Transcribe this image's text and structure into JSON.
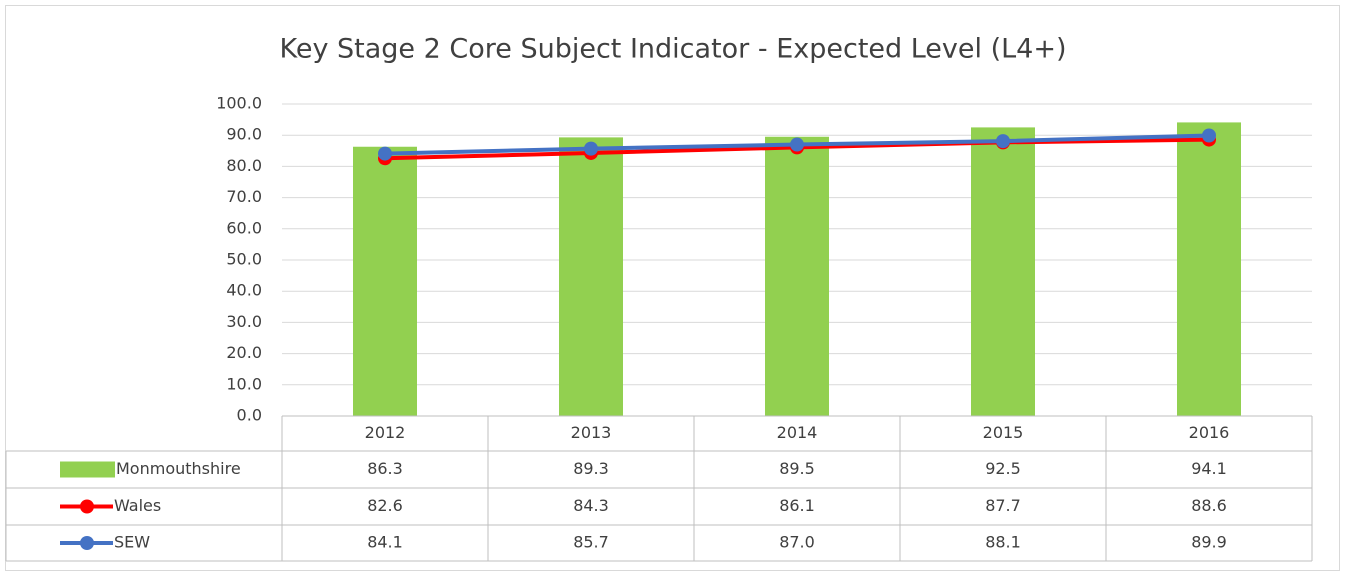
{
  "chart_data": {
    "type": "bar-line",
    "title": "Key Stage 2 Core Subject Indicator - Expected Level (L4+)",
    "categories": [
      "2012",
      "2013",
      "2014",
      "2015",
      "2016"
    ],
    "series": [
      {
        "name": "Monmouthshire",
        "type": "bar",
        "color": "#92d050",
        "values": [
          86.3,
          89.3,
          89.5,
          92.5,
          94.1
        ]
      },
      {
        "name": "Wales",
        "type": "line",
        "color": "#ff0000",
        "values": [
          82.6,
          84.3,
          86.1,
          87.7,
          88.6
        ]
      },
      {
        "name": "SEW",
        "type": "line",
        "color": "#4472c4",
        "values": [
          84.1,
          85.7,
          87.0,
          88.1,
          89.9
        ],
        "value_labels": [
          "84.1",
          "85.7",
          "87.0",
          "88.1",
          "89.9"
        ]
      }
    ],
    "ylim": [
      0,
      100
    ],
    "yticks": [
      {
        "value": 0,
        "label": "0.0"
      },
      {
        "value": 10,
        "label": "10.0"
      },
      {
        "value": 20,
        "label": "20.0"
      },
      {
        "value": 30,
        "label": "30.0"
      },
      {
        "value": 40,
        "label": "40.0"
      },
      {
        "value": 50,
        "label": "50.0"
      },
      {
        "value": 60,
        "label": "60.0"
      },
      {
        "value": 70,
        "label": "70.0"
      },
      {
        "value": 80,
        "label": "80.0"
      },
      {
        "value": 90,
        "label": "90.0"
      },
      {
        "value": 100,
        "label": "100.0"
      }
    ],
    "grid": true,
    "data_table": true
  }
}
